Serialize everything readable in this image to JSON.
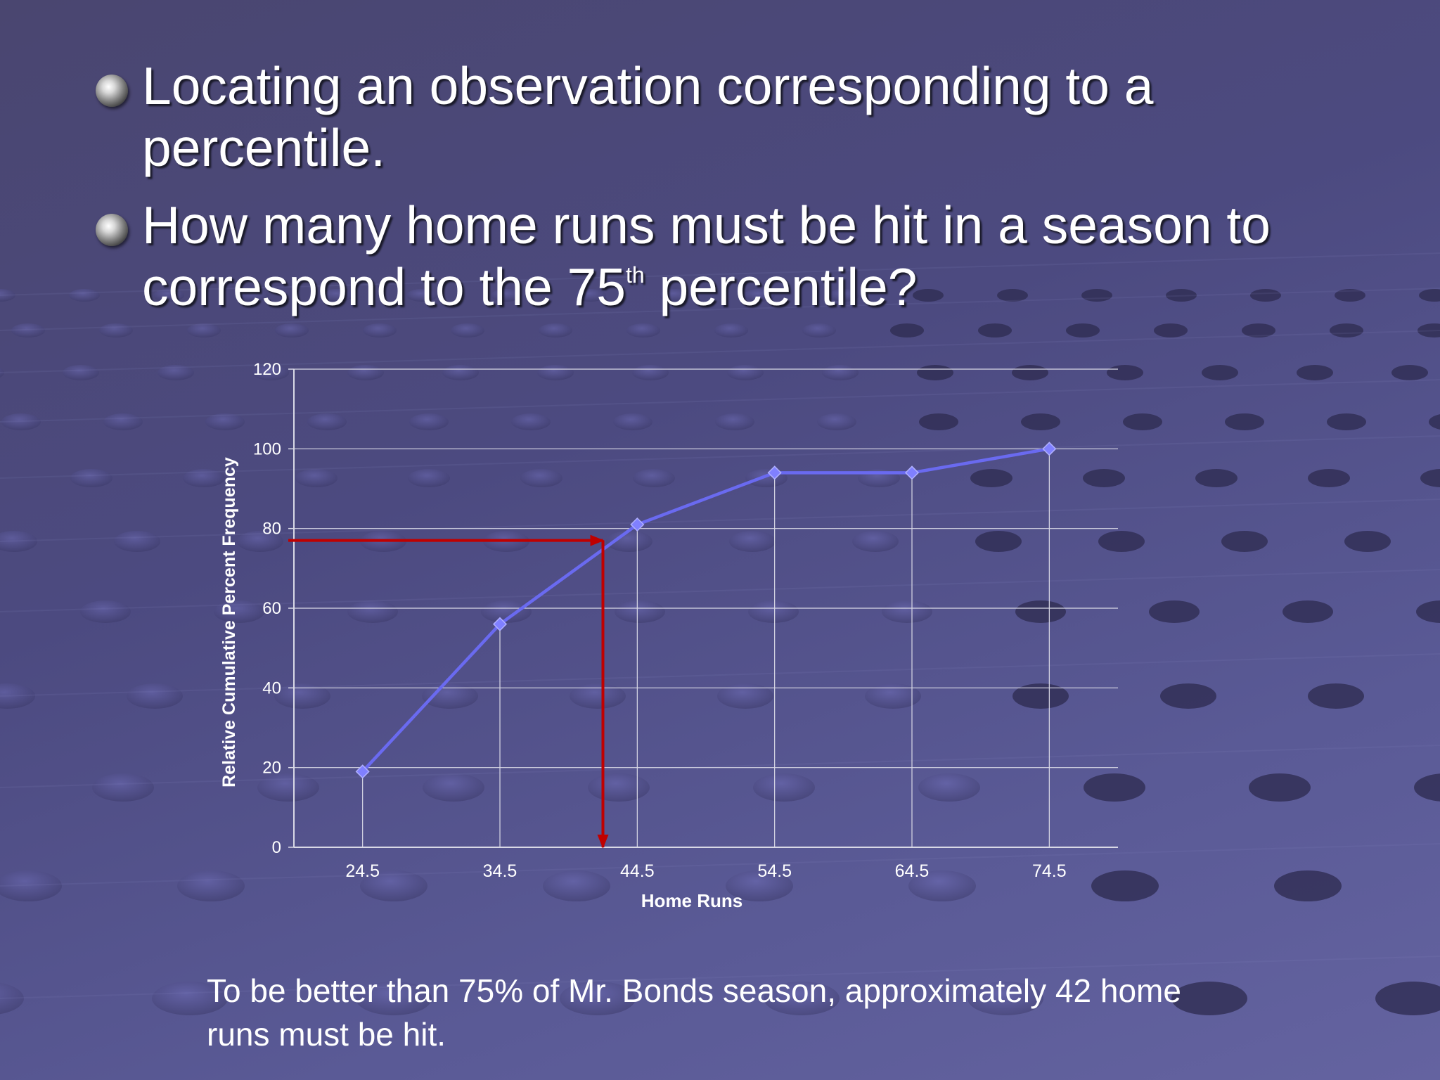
{
  "slide": {
    "bullets": [
      {
        "text": "Locating an observation corresponding to a percentile."
      },
      {
        "text_before": "How many home runs must be hit in a season to correspond to the 75",
        "superscript": "th",
        "text_after": " percentile?"
      }
    ],
    "caption": "To be better than 75% of Mr. Bonds season, approximately 42 home runs must be hit."
  },
  "colors": {
    "line": "#6a6af0",
    "marker": "#8080ff",
    "arrow": "#c00000",
    "gridline": "#d9d9e6",
    "axis_text": "#ffffff"
  },
  "chart_data": {
    "type": "line",
    "title": "",
    "xlabel": "Home Runs",
    "ylabel": "Relative Cumulative Percent Frequency",
    "categories": [
      "24.5",
      "34.5",
      "44.5",
      "54.5",
      "64.5",
      "74.5"
    ],
    "series": [
      {
        "values": [
          19,
          56,
          81,
          94,
          94,
          100
        ]
      }
    ],
    "ylim": [
      0,
      120
    ],
    "yticks": [
      0,
      20,
      40,
      60,
      80,
      100,
      120
    ],
    "grid": true,
    "annotation": {
      "type": "arrow",
      "y_value": 77,
      "x_value": 42,
      "description_color": "red"
    }
  }
}
